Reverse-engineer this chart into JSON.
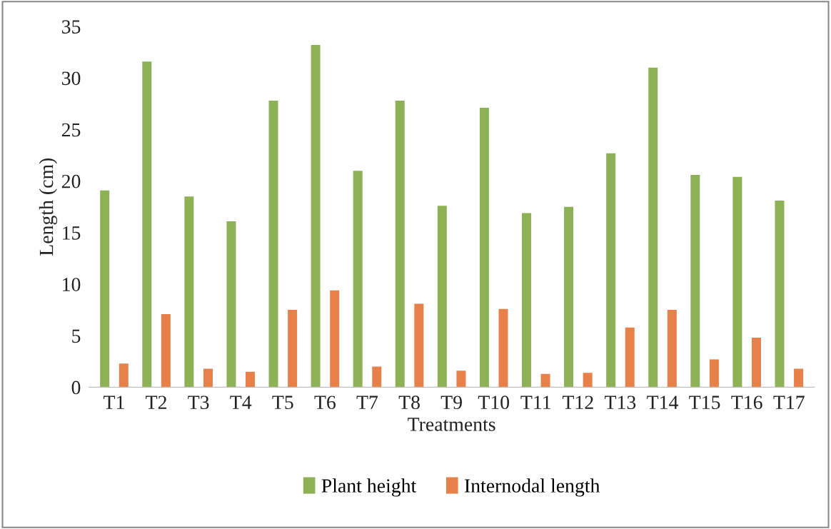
{
  "chart_data": {
    "type": "bar",
    "xlabel": "Treatments",
    "ylabel": "Length (cm)",
    "categories": [
      "T1",
      "T2",
      "T3",
      "T4",
      "T5",
      "T6",
      "T7",
      "T8",
      "T9",
      "T10",
      "T11",
      "T12",
      "T13",
      "T14",
      "T15",
      "T16",
      "T17"
    ],
    "series": [
      {
        "name": "Plant height",
        "color": "#8db255",
        "values": [
          19.1,
          31.6,
          18.5,
          16.1,
          27.8,
          33.2,
          21.0,
          27.8,
          17.6,
          27.1,
          16.9,
          17.5,
          22.7,
          31.0,
          20.6,
          20.4,
          18.1
        ]
      },
      {
        "name": "Internodal length",
        "color": "#e8804a",
        "values": [
          2.3,
          7.1,
          1.8,
          1.5,
          7.5,
          9.4,
          2.0,
          8.1,
          1.6,
          7.6,
          1.3,
          1.4,
          5.8,
          7.5,
          2.7,
          4.8,
          1.8
        ]
      }
    ],
    "ylim": [
      0,
      35
    ],
    "yticks": [
      0,
      5,
      10,
      15,
      20,
      25,
      30,
      35
    ],
    "grid": false,
    "legend": "bottom"
  }
}
